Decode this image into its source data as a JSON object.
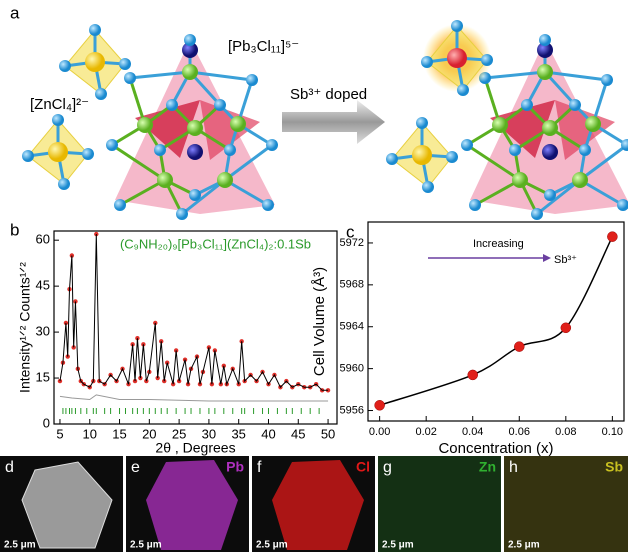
{
  "figure": {
    "panel_labels": [
      "a",
      "b",
      "c",
      "d",
      "e",
      "f",
      "g",
      "h"
    ],
    "diagram": {
      "zncl4_label": "[ZnCl₄]²⁻",
      "pb3cl11_label": "[Pb₃Cl₁₁]⁵⁻",
      "arrow_label": "Sb³⁺ doped"
    },
    "maps": [
      {
        "scale": "2.5 μm",
        "color": "#7a7a7a"
      },
      {
        "element": "Pb",
        "scale": "2.5 μm",
        "color": "#b030c0"
      },
      {
        "element": "Cl",
        "scale": "2.5 μm",
        "color": "#e01818"
      },
      {
        "element": "Zn",
        "scale": "2.5 μm",
        "color": "#30b030"
      },
      {
        "element": "Sb",
        "scale": "2.5 μm",
        "color": "#c8c020"
      }
    ]
  },
  "chart_data": [
    {
      "type": "line",
      "title": "(C₉NH₂₀)₉[Pb₃Cl₁₁](ZnCl₄)₂:0.1Sb",
      "title_color": "#2a9a2a",
      "x_label": "2θ , Degrees",
      "y_label": "Intensity¹ᐟ² Counts¹ᐟ²",
      "xlim": [
        4,
        51.5
      ],
      "xticks": [
        5,
        10,
        15,
        20,
        25,
        30,
        35,
        40,
        45,
        50
      ],
      "ylim": [
        0,
        63
      ],
      "yticks": [
        0,
        15,
        30,
        45,
        60
      ],
      "series": [
        {
          "color": "#e0302a",
          "marker": "dot",
          "x": [
            5,
            5.5,
            6,
            6.3,
            6.6,
            7,
            7.3,
            7.6,
            8,
            8.5,
            9,
            10,
            10.6,
            11.1,
            11.6,
            12.5,
            13.5,
            14.5,
            15.5,
            16.5,
            17.2,
            17.6,
            18,
            18.5,
            19,
            19.5,
            20,
            21,
            21.4,
            22,
            22.5,
            23,
            24,
            24.5,
            25,
            26,
            26.5,
            27,
            28,
            28.5,
            29,
            30,
            30.5,
            31,
            32,
            32.5,
            33,
            34,
            35,
            35.5,
            36,
            37,
            38,
            39,
            40,
            41,
            42,
            43,
            44,
            45,
            46,
            47,
            48,
            49,
            50
          ],
          "values": [
            14,
            20,
            33,
            22,
            44,
            55,
            25,
            40,
            18,
            14,
            13,
            12,
            14,
            62,
            14,
            13,
            16,
            14,
            18,
            13,
            26,
            14,
            28,
            15,
            26,
            14,
            17,
            33,
            15,
            27,
            14,
            20,
            13,
            24,
            14,
            21,
            13,
            18,
            22,
            13,
            17,
            25,
            13,
            24,
            13,
            19,
            13,
            18,
            13,
            27,
            14,
            16,
            14,
            17,
            13,
            16,
            12,
            14,
            12,
            13,
            12,
            12,
            13,
            11,
            11
          ]
        },
        {
          "color": "#000000",
          "x": [
            5,
            5.5,
            6,
            6.3,
            6.6,
            7,
            7.3,
            7.6,
            8,
            8.5,
            9,
            10,
            10.6,
            11.1,
            11.6,
            12.5,
            13.5,
            14.5,
            15.5,
            16.5,
            17.2,
            17.6,
            18,
            18.5,
            19,
            19.5,
            20,
            21,
            21.4,
            22,
            22.5,
            23,
            24,
            24.5,
            25,
            26,
            26.5,
            27,
            28,
            28.5,
            29,
            30,
            30.5,
            31,
            32,
            32.5,
            33,
            34,
            35,
            35.5,
            36,
            37,
            38,
            39,
            40,
            41,
            42,
            43,
            44,
            45,
            46,
            47,
            48,
            49,
            50
          ],
          "values": [
            14,
            20,
            33,
            22,
            44,
            55,
            25,
            40,
            18,
            14,
            13,
            12,
            14,
            62,
            14,
            13,
            16,
            14,
            18,
            13,
            26,
            14,
            28,
            15,
            26,
            14,
            17,
            33,
            15,
            27,
            14,
            20,
            13,
            24,
            14,
            21,
            13,
            18,
            22,
            13,
            17,
            25,
            13,
            24,
            13,
            19,
            13,
            18,
            13,
            27,
            14,
            16,
            14,
            17,
            13,
            16,
            12,
            14,
            12,
            13,
            12,
            12,
            13,
            11,
            11
          ]
        },
        {
          "color": "#999999",
          "x": [
            5,
            7,
            10,
            11.1,
            15,
            20,
            30,
            40,
            50
          ],
          "values": [
            9,
            8.5,
            8,
            9.5,
            8,
            8,
            7.5,
            7.5,
            7.5
          ]
        }
      ],
      "bragg_positions": [
        5.5,
        6,
        6.6,
        7,
        7.6,
        8.5,
        9.5,
        10.6,
        11.1,
        12.5,
        13.5,
        15,
        16,
        17.2,
        18,
        19,
        20,
        21,
        22,
        23,
        24.5,
        26,
        27,
        28.5,
        30,
        31,
        32.5,
        34,
        35.5,
        36,
        37.5,
        39,
        40,
        41.5,
        43,
        44,
        45.5,
        47,
        48.5
      ],
      "bragg_color": "#2a9a2a"
    },
    {
      "type": "scatter",
      "x_label": "Concentration (x)",
      "y_label": "Cell Volume (Å³)",
      "xlim": [
        -0.005,
        0.105
      ],
      "xticks": [
        {
          "value": 0,
          "label": "0.00"
        },
        {
          "value": 0.02,
          "label": "0.02"
        },
        {
          "value": 0.04,
          "label": "0.04"
        },
        {
          "value": 0.06,
          "label": "0.06"
        },
        {
          "value": 0.08,
          "label": "0.08"
        },
        {
          "value": 0.1,
          "label": "0.10"
        }
      ],
      "ylim": [
        5955,
        5974
      ],
      "yticks": [
        5956,
        5960,
        5964,
        5968,
        5972
      ],
      "x": [
        0,
        0.04,
        0.06,
        0.08,
        0.1
      ],
      "values": [
        5956.5,
        5959.4,
        5962.1,
        5963.9,
        5972.6
      ],
      "color": "#e0201a",
      "line_color": "#000000",
      "annotation": "Increasing",
      "annotation_ion": "Sb³⁺",
      "annotation_color": "#6a3fa0"
    }
  ]
}
